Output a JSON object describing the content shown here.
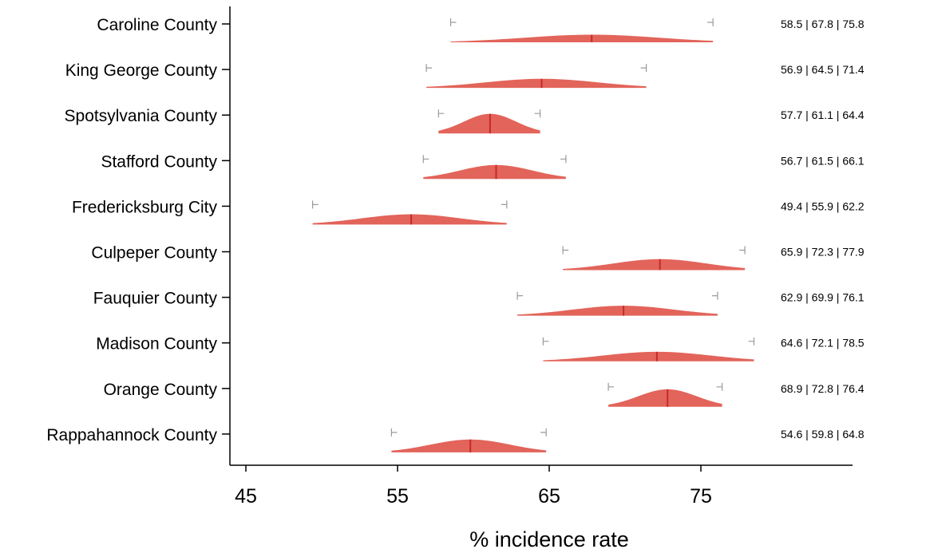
{
  "chart_data": {
    "type": "ridgeline",
    "xlabel": "% incidence rate",
    "xlim": [
      45,
      85
    ],
    "xticks": [
      45,
      55,
      65,
      75
    ],
    "colors": {
      "fill": "#e2645a",
      "median": "#c62a2a",
      "cap": "#9a9a9a"
    },
    "rows": [
      {
        "label": "Caroline County",
        "low": 58.5,
        "median": 67.8,
        "high": 75.8,
        "annotation": "58.5 | 67.8 | 75.8"
      },
      {
        "label": "King George County",
        "low": 56.9,
        "median": 64.5,
        "high": 71.4,
        "annotation": "56.9 | 64.5 | 71.4"
      },
      {
        "label": "Spotsylvania County",
        "low": 57.7,
        "median": 61.1,
        "high": 64.4,
        "annotation": "57.7 | 61.1 | 64.4"
      },
      {
        "label": "Stafford County",
        "low": 56.7,
        "median": 61.5,
        "high": 66.1,
        "annotation": "56.7 | 61.5 | 66.1"
      },
      {
        "label": "Fredericksburg City",
        "low": 49.4,
        "median": 55.9,
        "high": 62.2,
        "annotation": "49.4 | 55.9 | 62.2"
      },
      {
        "label": "Culpeper County",
        "low": 65.9,
        "median": 72.3,
        "high": 77.9,
        "annotation": "65.9 | 72.3 | 77.9"
      },
      {
        "label": "Fauquier County",
        "low": 62.9,
        "median": 69.9,
        "high": 76.1,
        "annotation": "62.9 | 69.9 | 76.1"
      },
      {
        "label": "Madison County",
        "low": 64.6,
        "median": 72.1,
        "high": 78.5,
        "annotation": "64.6 | 72.1 | 78.5"
      },
      {
        "label": "Orange County",
        "low": 68.9,
        "median": 72.8,
        "high": 76.4,
        "annotation": "68.9 | 72.8 | 76.4"
      },
      {
        "label": "Rappahannock County",
        "low": 54.6,
        "median": 59.8,
        "high": 64.8,
        "annotation": "54.6 | 59.8 | 64.8"
      }
    ]
  }
}
